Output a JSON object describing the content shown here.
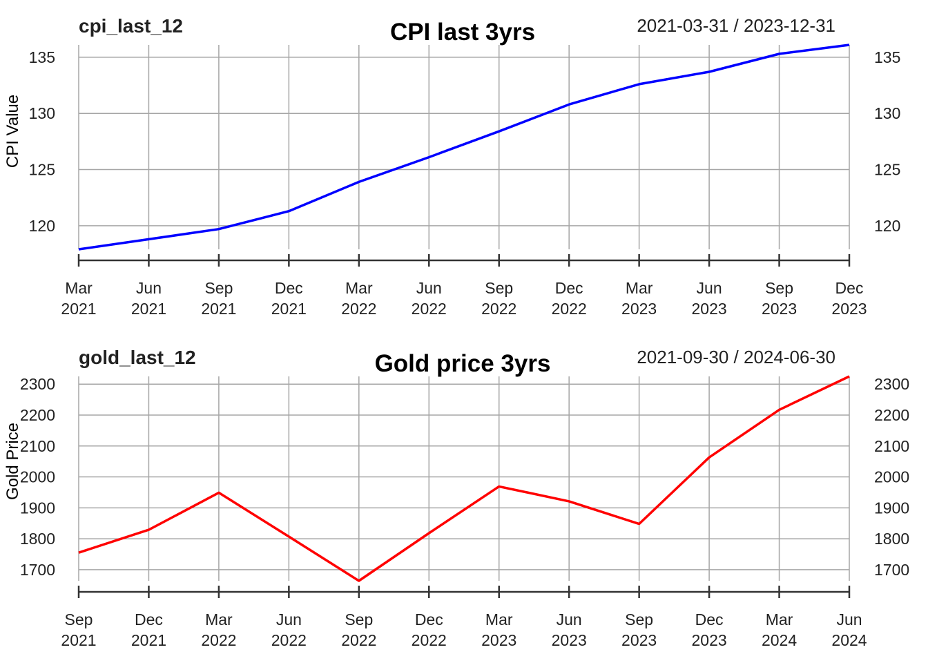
{
  "chart_data": [
    {
      "type": "line",
      "series_name": "cpi_last_12",
      "title": "CPI last 3yrs",
      "date_range": "2021-03-31 / 2023-12-31",
      "ylabel": "CPI Value",
      "xlabel": "",
      "ylim": [
        117.9,
        136.1
      ],
      "yticks": [
        120,
        125,
        130,
        135
      ],
      "ytick_labels": [
        "120",
        "125",
        "130",
        "135"
      ],
      "x_labels": [
        [
          "Mar",
          "2021"
        ],
        [
          "Jun",
          "2021"
        ],
        [
          "Sep",
          "2021"
        ],
        [
          "Dec",
          "2021"
        ],
        [
          "Mar",
          "2022"
        ],
        [
          "Jun",
          "2022"
        ],
        [
          "Sep",
          "2022"
        ],
        [
          "Dec",
          "2022"
        ],
        [
          "Mar",
          "2023"
        ],
        [
          "Jun",
          "2023"
        ],
        [
          "Sep",
          "2023"
        ],
        [
          "Dec",
          "2023"
        ]
      ],
      "grid": true,
      "legend": "none",
      "color": "#0000ff",
      "x": [
        "2021-03-31",
        "2021-06-30",
        "2021-09-30",
        "2021-12-31",
        "2022-03-31",
        "2022-06-30",
        "2022-09-30",
        "2022-12-31",
        "2023-03-31",
        "2023-06-30",
        "2023-09-30",
        "2023-12-31"
      ],
      "values": [
        117.9,
        118.8,
        119.7,
        121.3,
        123.9,
        126.1,
        128.4,
        130.8,
        132.6,
        133.7,
        135.3,
        136.1
      ]
    },
    {
      "type": "line",
      "series_name": "gold_last_12",
      "title": "Gold price 3yrs",
      "date_range": "2021-09-30 / 2024-06-30",
      "ylabel": "Gold Price",
      "xlabel": "",
      "ylim": [
        1664,
        2325
      ],
      "yticks": [
        1700,
        1800,
        1900,
        2000,
        2100,
        2200,
        2300
      ],
      "ytick_labels": [
        "1700",
        "1800",
        "1900",
        "2000",
        "2100",
        "2200",
        "2300"
      ],
      "x_labels": [
        [
          "Sep",
          "2021"
        ],
        [
          "Dec",
          "2021"
        ],
        [
          "Mar",
          "2022"
        ],
        [
          "Jun",
          "2022"
        ],
        [
          "Sep",
          "2022"
        ],
        [
          "Dec",
          "2022"
        ],
        [
          "Mar",
          "2023"
        ],
        [
          "Jun",
          "2023"
        ],
        [
          "Sep",
          "2023"
        ],
        [
          "Dec",
          "2023"
        ],
        [
          "Mar",
          "2024"
        ],
        [
          "Jun",
          "2024"
        ]
      ],
      "grid": true,
      "legend": "none",
      "color": "#ff0000",
      "x": [
        "2021-09-30",
        "2021-12-31",
        "2022-03-31",
        "2022-06-30",
        "2022-09-30",
        "2022-12-31",
        "2023-03-31",
        "2023-06-30",
        "2023-09-30",
        "2023-12-31",
        "2024-03-31",
        "2024-06-30"
      ],
      "values": [
        1755,
        1829,
        1949,
        1807,
        1664,
        1818,
        1969,
        1921,
        1848,
        2063,
        2217,
        2325
      ]
    }
  ]
}
